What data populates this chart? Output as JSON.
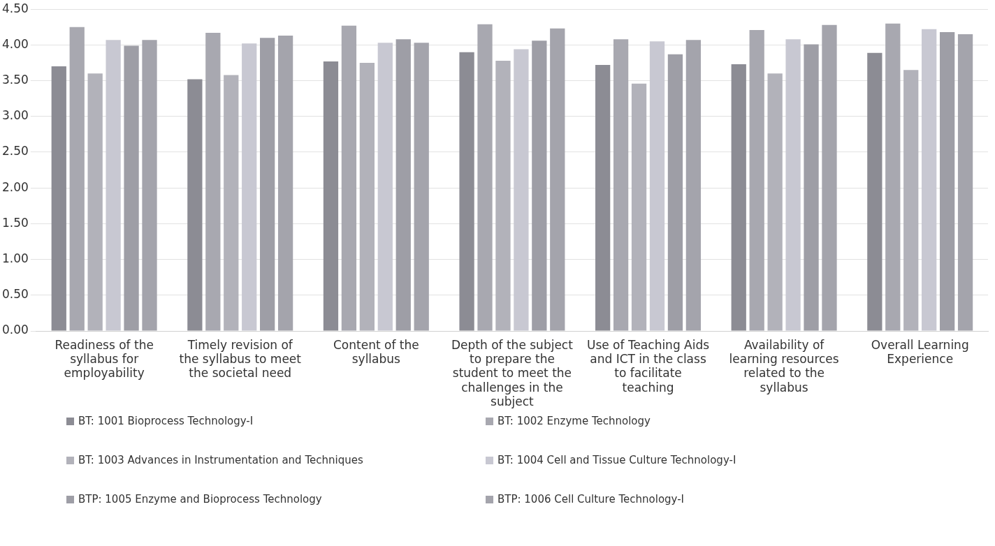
{
  "chart_data": {
    "type": "bar",
    "categories": [
      "Readiness of the syllabus for employability",
      "Timely revision of the syllabus to meet the societal need",
      "Content of the syllabus",
      "Depth of the subject to prepare the student to meet the challenges in the subject",
      "Use of Teaching Aids and ICT in the class to facilitate teaching",
      "Availability of learning resources related to the syllabus",
      "Overall Learning Experience"
    ],
    "series": [
      {
        "name": "BT: 1001 Bioprocess Technology-I",
        "color": "#8c8c94",
        "values": [
          3.7,
          3.52,
          3.77,
          3.9,
          3.72,
          3.73,
          3.89
        ]
      },
      {
        "name": "BT: 1002 Enzyme Technology",
        "color": "#a8a8b0",
        "values": [
          4.25,
          4.17,
          4.27,
          4.29,
          4.08,
          4.21,
          4.3
        ]
      },
      {
        "name": "BT: 1003 Advances in Instrumentation and Techniques",
        "color": "#b2b2ba",
        "values": [
          3.6,
          3.58,
          3.75,
          3.78,
          3.46,
          3.6,
          3.65
        ]
      },
      {
        "name": "BT: 1004 Cell and Tissue Culture Technology-I",
        "color": "#c8c8d2",
        "values": [
          4.07,
          4.02,
          4.03,
          3.94,
          4.05,
          4.08,
          4.22
        ]
      },
      {
        "name": "BTP: 1005 Enzyme and Bioprocess Technology",
        "color": "#9e9ea6",
        "values": [
          3.99,
          4.1,
          4.08,
          4.06,
          3.87,
          4.01,
          4.18
        ]
      },
      {
        "name": "BTP: 1006 Cell Culture Technology-I",
        "color": "#a4a4ac",
        "values": [
          4.07,
          4.13,
          4.03,
          4.23,
          4.07,
          4.28,
          4.15
        ]
      }
    ],
    "ylim": [
      0,
      4.5
    ],
    "yticks": [
      {
        "value": 0,
        "label": "0.00"
      },
      {
        "value": 0.5,
        "label": "0.50"
      },
      {
        "value": 1,
        "label": "1.00"
      },
      {
        "value": 1.5,
        "label": "1.50"
      },
      {
        "value": 2,
        "label": "2.00"
      },
      {
        "value": 2.5,
        "label": "2.50"
      },
      {
        "value": 3,
        "label": "3.00"
      },
      {
        "value": 3.5,
        "label": "3.50"
      },
      {
        "value": 4,
        "label": "4.00"
      },
      {
        "value": 4.5,
        "label": "4.50"
      }
    ],
    "grid": "y",
    "legend": "bottom"
  }
}
